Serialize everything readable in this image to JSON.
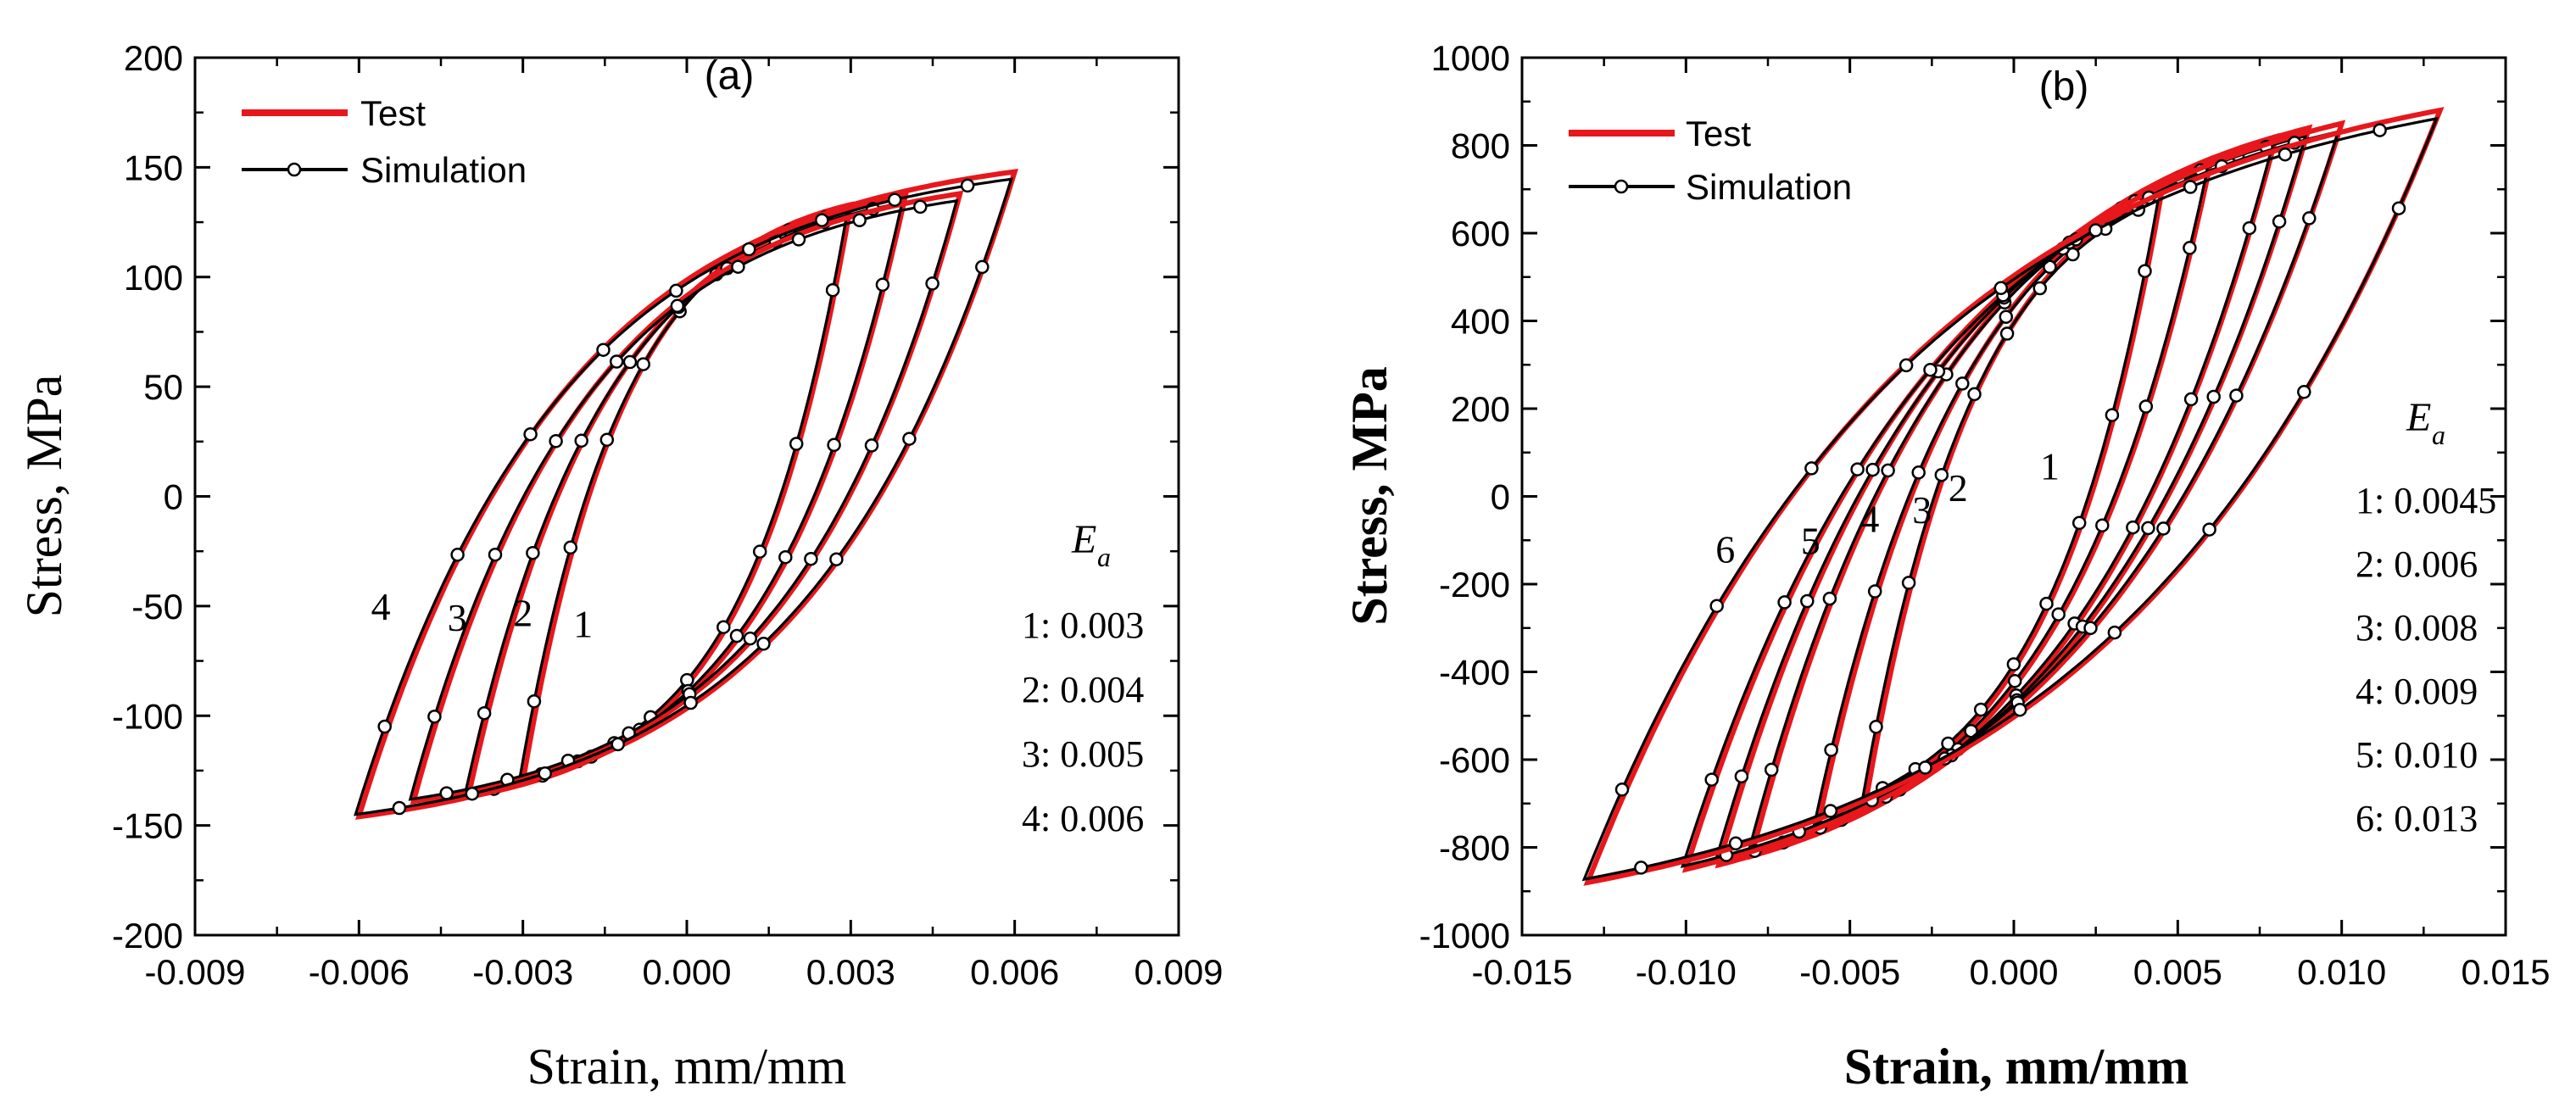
{
  "colors": {
    "test": "#e8171c",
    "simulation": "#000000",
    "axis": "#000000",
    "background": "#ffffff"
  },
  "chart_data": [
    {
      "type": "line",
      "panel_label": "(a)",
      "xlabel": "Strain, mm/mm",
      "ylabel": "Stress, MPa",
      "xlim": [
        -0.009,
        0.009
      ],
      "ylim": [
        -200,
        200
      ],
      "xticks": [
        "-0.009",
        "-0.006",
        "-0.003",
        "0.000",
        "0.003",
        "0.006",
        "0.009"
      ],
      "yticks": [
        "200",
        "150",
        "100",
        "50",
        "0",
        "-50",
        "-100",
        "-150",
        "-200"
      ],
      "legend": [
        "Test",
        "Simulation"
      ],
      "legend_position": "top-left",
      "amplitude_title_main": "E",
      "amplitude_title_sub": "a",
      "amplitude_entries": [
        "1: 0.003",
        "2: 0.004",
        "3: 0.005",
        "4: 0.006"
      ],
      "curve_labels": [
        "1",
        "2",
        "3",
        "4"
      ],
      "amplitudes": [
        0.003,
        0.004,
        0.005,
        0.006
      ],
      "peak_stress": [
        133,
        137,
        138,
        148
      ],
      "valley_stress": [
        -130,
        -137,
        -139,
        -146
      ],
      "curve_label_anchors": [
        {
          "label": "1",
          "x": -0.0019,
          "y": -58
        },
        {
          "label": "2",
          "x": -0.003,
          "y": -53
        },
        {
          "label": "3",
          "x": -0.0042,
          "y": -55
        },
        {
          "label": "4",
          "x": -0.0056,
          "y": -50
        }
      ]
    },
    {
      "type": "line",
      "panel_label": "(b)",
      "xlabel": "Strain, mm/mm",
      "ylabel": "Stress,  MPa",
      "xlim": [
        -0.015,
        0.015
      ],
      "ylim": [
        -1000,
        1000
      ],
      "xticks": [
        "-0.015",
        "-0.010",
        "-0.005",
        "0.000",
        "0.005",
        "0.010",
        "0.015"
      ],
      "yticks": [
        "1000",
        "800",
        "600",
        "400",
        "200",
        "0",
        "-200",
        "-400",
        "-600",
        "-800",
        "-1000"
      ],
      "legend": [
        "Test",
        "Simulation"
      ],
      "legend_position": "top-left",
      "amplitude_title_main": "E",
      "amplitude_title_sub": "a",
      "amplitude_entries": [
        "1: 0.0045",
        "2: 0.006",
        "3: 0.008",
        "4: 0.009",
        "5: 0.010",
        "6: 0.013"
      ],
      "curve_labels": [
        "1",
        "2",
        "3",
        "4",
        "5",
        "6"
      ],
      "amplitudes": [
        0.0045,
        0.006,
        0.008,
        0.009,
        0.01,
        0.013
      ],
      "peak_stress": [
        690,
        760,
        820,
        840,
        850,
        880
      ],
      "valley_stress": [
        -690,
        -760,
        -820,
        -840,
        -850,
        -880
      ],
      "curve_label_anchors": [
        {
          "label": "1",
          "x": 0.0011,
          "y": 70
        },
        {
          "label": "2",
          "x": -0.0017,
          "y": 20
        },
        {
          "label": "3",
          "x": -0.0028,
          "y": -30
        },
        {
          "label": "4",
          "x": -0.0044,
          "y": -50
        },
        {
          "label": "5",
          "x": -0.0062,
          "y": -100
        },
        {
          "label": "6",
          "x": -0.0088,
          "y": -120
        }
      ]
    }
  ]
}
